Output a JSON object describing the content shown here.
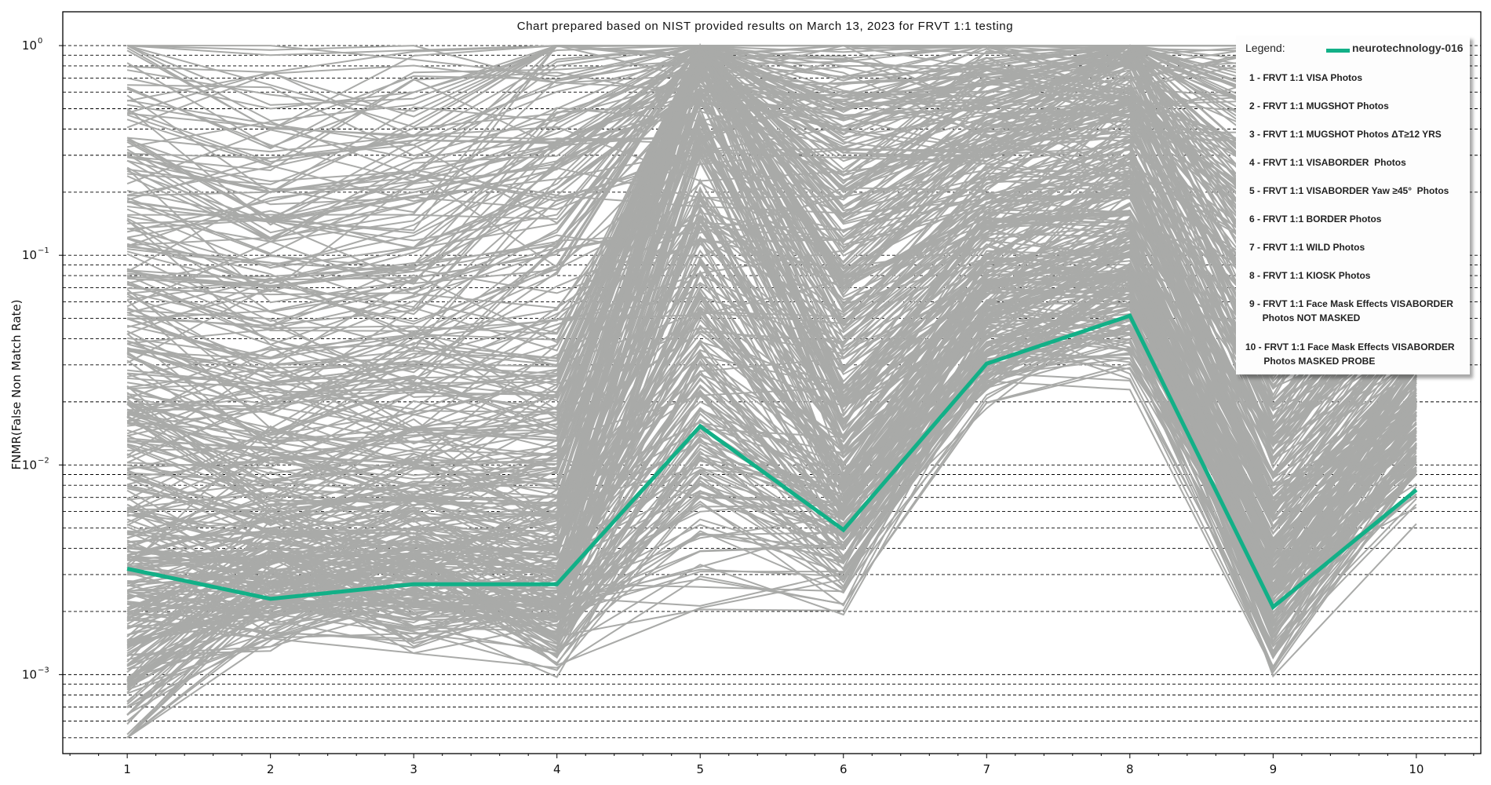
{
  "chart_data": {
    "type": "line",
    "title": "Chart prepared based on NIST provided results on March 13, 2023 for FRVT 1:1 testing",
    "xlabel": "",
    "ylabel": "FNMR(False Non Match Rate)",
    "yscale": "log",
    "ylim": [
      0.00042,
      1.45
    ],
    "xlim": [
      0.55,
      10.45
    ],
    "x": [
      1,
      2,
      3,
      4,
      5,
      6,
      7,
      8,
      9,
      10
    ],
    "x_tick_labels": [
      "1",
      "2",
      "3",
      "4",
      "5",
      "6",
      "7",
      "8",
      "9",
      "10"
    ],
    "y_tick_labels": [
      "10^0",
      "10^-1",
      "10^-2",
      "10^-3"
    ],
    "grid": "horizontal dashed at major and minor log ticks",
    "legend_position": "upper right",
    "highlight_series": {
      "name": "neurotechnology-016",
      "color": "#12b087",
      "values": [
        0.0032,
        0.0023,
        0.0027,
        0.0027,
        0.0153,
        0.0049,
        0.0304,
        0.0515,
        0.0021,
        0.0076
      ]
    },
    "background_series_color": "#a9aaa8",
    "background_series_description": "Hundreds of other FRVT 1:1 algorithms (gray)",
    "background_series_sample": [
      [
        0.0014,
        0.0024,
        0.0022,
        0.0016,
        0.0055,
        0.0034,
        0.032,
        0.04,
        0.0015,
        0.0125
      ],
      [
        0.0009,
        0.0023,
        0.0021,
        0.0019,
        0.0031,
        0.0031,
        0.031,
        0.045,
        0.0017,
        0.009
      ],
      [
        0.0006,
        0.0022,
        0.0022,
        0.0018,
        0.007,
        0.004,
        0.033,
        0.05,
        0.0018,
        0.011
      ],
      [
        0.0007,
        0.0022,
        0.0021,
        0.0017,
        0.011,
        0.0045,
        0.034,
        0.055,
        0.0019,
        0.012
      ],
      [
        0.002,
        0.0025,
        0.0024,
        0.0022,
        0.03,
        0.006,
        0.04,
        0.07,
        0.0025,
        0.015
      ],
      [
        0.0025,
        0.0028,
        0.0028,
        0.0025,
        0.12,
        0.008,
        0.05,
        0.09,
        0.003,
        0.018
      ],
      [
        0.004,
        0.0035,
        0.0038,
        0.0032,
        0.5,
        0.012,
        0.07,
        0.12,
        0.004,
        0.022
      ],
      [
        0.006,
        0.0045,
        0.005,
        0.0045,
        0.9,
        0.02,
        0.1,
        0.2,
        0.006,
        0.03
      ],
      [
        0.01,
        0.007,
        0.008,
        0.007,
        1.0,
        0.04,
        0.15,
        0.3,
        0.009,
        0.05
      ],
      [
        0.02,
        0.013,
        0.015,
        0.013,
        1.0,
        0.08,
        0.25,
        0.5,
        0.015,
        0.1
      ],
      [
        0.05,
        0.03,
        0.035,
        0.03,
        1.0,
        0.2,
        0.4,
        0.8,
        0.04,
        0.3
      ],
      [
        0.12,
        0.07,
        0.09,
        0.5,
        1.0,
        0.5,
        0.6,
        1.0,
        0.2,
        0.7
      ],
      [
        0.3,
        0.2,
        0.25,
        0.8,
        1.0,
        0.8,
        0.8,
        1.0,
        0.6,
        0.9
      ],
      [
        0.7,
        0.5,
        0.6,
        0.95,
        1.0,
        1.0,
        1.0,
        1.0,
        1.0,
        1.0
      ],
      [
        1.0,
        0.9,
        0.95,
        1.0,
        1.0,
        1.0,
        1.0,
        1.0,
        1.0,
        1.0
      ]
    ],
    "legend": {
      "title": "Legend:",
      "series_label": "neurotechnology-016",
      "items": [
        "1 - FRVT 1:1 VISA Photos",
        "2 - FRVT 1:1 MUGSHOT Photos",
        "3 - FRVT 1:1 MUGSHOT Photos ΔT≥12 YRS",
        "4 - FRVT 1:1 VISABORDER  Photos",
        "5 - FRVT 1:1 VISABORDER Yaw ≥45°  Photos",
        "6 - FRVT 1:1 BORDER Photos",
        "7 - FRVT 1:1 WILD Photos",
        "8 - FRVT 1:1 KIOSK Photos",
        "9 - FRVT 1:1 Face Mask Effects VISABORDER\n     Photos NOT MASKED",
        "10 - FRVT 1:1 Face Mask Effects VISABORDER\n       Photos MASKED PROBE"
      ]
    }
  }
}
